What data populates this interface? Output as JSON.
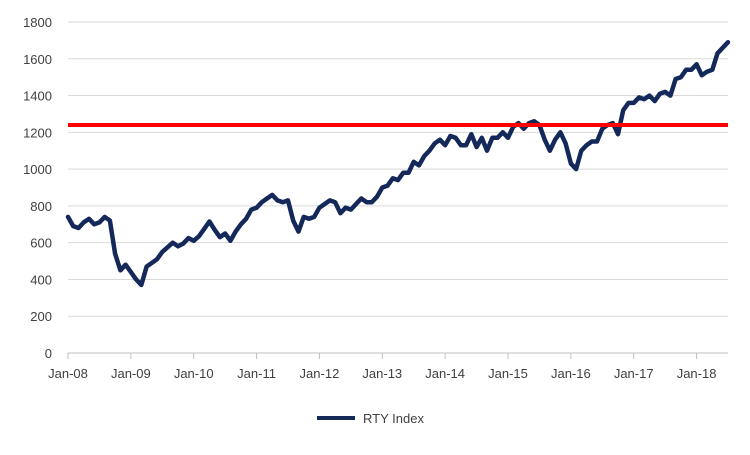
{
  "chart_data": {
    "type": "line",
    "title": "",
    "xlabel": "",
    "ylabel": "",
    "ylim": [
      0,
      1800
    ],
    "y_ticks": [
      0,
      200,
      400,
      600,
      800,
      1000,
      1200,
      1400,
      1600,
      1800
    ],
    "x_ticks": [
      {
        "label": "Jan-08",
        "x": "2008-01"
      },
      {
        "label": "Jan-09",
        "x": "2009-01"
      },
      {
        "label": "Jan-10",
        "x": "2010-01"
      },
      {
        "label": "Jan-11",
        "x": "2011-01"
      },
      {
        "label": "Jan-12",
        "x": "2012-01"
      },
      {
        "label": "Jan-13",
        "x": "2013-01"
      },
      {
        "label": "Jan-14",
        "x": "2014-01"
      },
      {
        "label": "Jan-15",
        "x": "2015-01"
      },
      {
        "label": "Jan-16",
        "x": "2016-01"
      },
      {
        "label": "Jan-17",
        "x": "2017-01"
      },
      {
        "label": "Jan-18",
        "x": "2018-01"
      }
    ],
    "xlim": [
      "2008-01",
      "2018-07"
    ],
    "grid": "horizontal",
    "legend_placement": "bottom",
    "series": [
      {
        "name": "RTY Index",
        "color": "#14285a",
        "points": [
          [
            "2008-01",
            740
          ],
          [
            "2008-02",
            690
          ],
          [
            "2008-03",
            680
          ],
          [
            "2008-04",
            710
          ],
          [
            "2008-05",
            730
          ],
          [
            "2008-06",
            700
          ],
          [
            "2008-07",
            710
          ],
          [
            "2008-08",
            740
          ],
          [
            "2008-09",
            720
          ],
          [
            "2008-10",
            540
          ],
          [
            "2008-11",
            450
          ],
          [
            "2008-12",
            480
          ],
          [
            "2009-01",
            440
          ],
          [
            "2009-02",
            400
          ],
          [
            "2009-03",
            370
          ],
          [
            "2009-04",
            470
          ],
          [
            "2009-05",
            490
          ],
          [
            "2009-06",
            510
          ],
          [
            "2009-07",
            550
          ],
          [
            "2009-08",
            575
          ],
          [
            "2009-09",
            600
          ],
          [
            "2009-10",
            580
          ],
          [
            "2009-11",
            595
          ],
          [
            "2009-12",
            625
          ],
          [
            "2010-01",
            610
          ],
          [
            "2010-02",
            635
          ],
          [
            "2010-03",
            675
          ],
          [
            "2010-04",
            715
          ],
          [
            "2010-05",
            670
          ],
          [
            "2010-06",
            630
          ],
          [
            "2010-07",
            650
          ],
          [
            "2010-08",
            610
          ],
          [
            "2010-09",
            660
          ],
          [
            "2010-10",
            700
          ],
          [
            "2010-11",
            730
          ],
          [
            "2010-12",
            780
          ],
          [
            "2011-01",
            790
          ],
          [
            "2011-02",
            820
          ],
          [
            "2011-03",
            840
          ],
          [
            "2011-04",
            860
          ],
          [
            "2011-05",
            830
          ],
          [
            "2011-06",
            820
          ],
          [
            "2011-07",
            830
          ],
          [
            "2011-08",
            720
          ],
          [
            "2011-09",
            660
          ],
          [
            "2011-10",
            740
          ],
          [
            "2011-11",
            730
          ],
          [
            "2011-12",
            740
          ],
          [
            "2012-01",
            790
          ],
          [
            "2012-02",
            810
          ],
          [
            "2012-03",
            830
          ],
          [
            "2012-04",
            820
          ],
          [
            "2012-05",
            760
          ],
          [
            "2012-06",
            790
          ],
          [
            "2012-07",
            780
          ],
          [
            "2012-08",
            810
          ],
          [
            "2012-09",
            840
          ],
          [
            "2012-10",
            820
          ],
          [
            "2012-11",
            820
          ],
          [
            "2012-12",
            850
          ],
          [
            "2013-01",
            900
          ],
          [
            "2013-02",
            910
          ],
          [
            "2013-03",
            950
          ],
          [
            "2013-04",
            940
          ],
          [
            "2013-05",
            980
          ],
          [
            "2013-06",
            980
          ],
          [
            "2013-07",
            1040
          ],
          [
            "2013-08",
            1020
          ],
          [
            "2013-09",
            1070
          ],
          [
            "2013-10",
            1100
          ],
          [
            "2013-11",
            1140
          ],
          [
            "2013-12",
            1160
          ],
          [
            "2014-01",
            1130
          ],
          [
            "2014-02",
            1180
          ],
          [
            "2014-03",
            1170
          ],
          [
            "2014-04",
            1130
          ],
          [
            "2014-05",
            1130
          ],
          [
            "2014-06",
            1190
          ],
          [
            "2014-07",
            1120
          ],
          [
            "2014-08",
            1170
          ],
          [
            "2014-09",
            1100
          ],
          [
            "2014-10",
            1170
          ],
          [
            "2014-11",
            1170
          ],
          [
            "2014-12",
            1200
          ],
          [
            "2015-01",
            1170
          ],
          [
            "2015-02",
            1230
          ],
          [
            "2015-03",
            1250
          ],
          [
            "2015-04",
            1220
          ],
          [
            "2015-05",
            1250
          ],
          [
            "2015-06",
            1260
          ],
          [
            "2015-07",
            1240
          ],
          [
            "2015-08",
            1160
          ],
          [
            "2015-09",
            1100
          ],
          [
            "2015-10",
            1160
          ],
          [
            "2015-11",
            1200
          ],
          [
            "2015-12",
            1140
          ],
          [
            "2016-01",
            1030
          ],
          [
            "2016-02",
            1000
          ],
          [
            "2016-03",
            1100
          ],
          [
            "2016-04",
            1130
          ],
          [
            "2016-05",
            1150
          ],
          [
            "2016-06",
            1150
          ],
          [
            "2016-07",
            1220
          ],
          [
            "2016-08",
            1240
          ],
          [
            "2016-09",
            1250
          ],
          [
            "2016-10",
            1190
          ],
          [
            "2016-11",
            1320
          ],
          [
            "2016-12",
            1360
          ],
          [
            "2017-01",
            1360
          ],
          [
            "2017-02",
            1390
          ],
          [
            "2017-03",
            1380
          ],
          [
            "2017-04",
            1400
          ],
          [
            "2017-05",
            1370
          ],
          [
            "2017-06",
            1410
          ],
          [
            "2017-07",
            1420
          ],
          [
            "2017-08",
            1400
          ],
          [
            "2017-09",
            1490
          ],
          [
            "2017-10",
            1500
          ],
          [
            "2017-11",
            1540
          ],
          [
            "2017-12",
            1540
          ],
          [
            "2018-01",
            1570
          ],
          [
            "2018-02",
            1510
          ],
          [
            "2018-03",
            1530
          ],
          [
            "2018-04",
            1540
          ],
          [
            "2018-05",
            1630
          ],
          [
            "2018-06",
            1660
          ],
          [
            "2018-07",
            1690
          ]
        ]
      },
      {
        "name": "",
        "type": "reference_line",
        "color": "#ff0000",
        "value": 1240
      }
    ]
  }
}
